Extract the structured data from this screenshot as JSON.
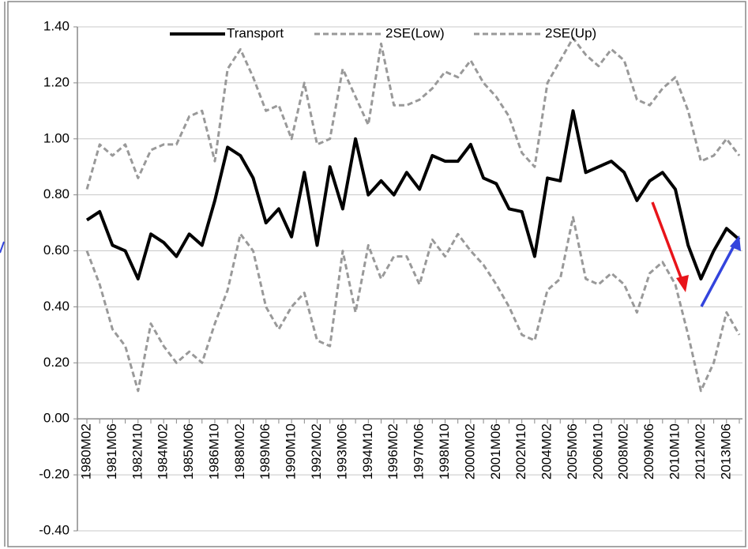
{
  "chart_data": {
    "type": "line",
    "categories": [
      "1980M02",
      null,
      "1981M06",
      null,
      "1982M10",
      null,
      "1984M02",
      null,
      "1985M06",
      null,
      "1986M10",
      null,
      "1988M02",
      null,
      "1989M06",
      null,
      "1990M10",
      null,
      "1992M02",
      null,
      "1993M06",
      null,
      "1994M10",
      null,
      "1996M02",
      null,
      "1997M06",
      null,
      "1998M10",
      null,
      "2000M02",
      null,
      "2001M06",
      null,
      "2002M10",
      null,
      "2004M02",
      null,
      "2005M06",
      null,
      "2006M10",
      null,
      "2008M02",
      null,
      "2009M06",
      null,
      "2010M10",
      null,
      "2012M02",
      null,
      "2013M06",
      null
    ],
    "series": [
      {
        "name": "Transport",
        "color": "#000000",
        "dashed": false,
        "values": [
          0.71,
          0.74,
          0.62,
          0.6,
          0.5,
          0.66,
          0.63,
          0.58,
          0.66,
          0.62,
          0.78,
          0.97,
          0.94,
          0.86,
          0.7,
          0.75,
          0.65,
          0.88,
          0.62,
          0.9,
          0.75,
          1.0,
          0.8,
          0.85,
          0.8,
          0.88,
          0.82,
          0.94,
          0.92,
          0.92,
          0.98,
          0.86,
          0.84,
          0.75,
          0.74,
          0.58,
          0.86,
          0.85,
          1.1,
          0.88,
          0.9,
          0.92,
          0.88,
          0.78,
          0.85,
          0.88,
          0.82,
          0.62,
          0.5,
          0.6,
          0.68,
          0.64
        ]
      },
      {
        "name": "2SE(Low)",
        "color": "#999999",
        "dashed": true,
        "values": [
          0.6,
          0.48,
          0.32,
          0.26,
          0.1,
          0.34,
          0.26,
          0.2,
          0.24,
          0.2,
          0.34,
          0.46,
          0.66,
          0.6,
          0.4,
          0.32,
          0.4,
          0.45,
          0.28,
          0.26,
          0.6,
          0.38,
          0.62,
          0.5,
          0.58,
          0.58,
          0.48,
          0.64,
          0.58,
          0.66,
          0.6,
          0.55,
          0.48,
          0.4,
          0.3,
          0.28,
          0.46,
          0.5,
          0.72,
          0.5,
          0.48,
          0.52,
          0.48,
          0.38,
          0.52,
          0.56,
          0.48,
          0.3,
          0.1,
          0.2,
          0.38,
          0.3
        ]
      },
      {
        "name": "2SE(Up)",
        "color": "#999999",
        "dashed": true,
        "values": [
          0.82,
          0.98,
          0.94,
          0.98,
          0.86,
          0.96,
          0.98,
          0.98,
          1.08,
          1.1,
          0.92,
          1.25,
          1.32,
          1.22,
          1.1,
          1.12,
          1.0,
          1.2,
          0.98,
          1.0,
          1.25,
          1.15,
          1.05,
          1.34,
          1.12,
          1.12,
          1.14,
          1.18,
          1.24,
          1.22,
          1.28,
          1.2,
          1.15,
          1.08,
          0.95,
          0.9,
          1.2,
          1.28,
          1.36,
          1.3,
          1.26,
          1.32,
          1.28,
          1.14,
          1.12,
          1.18,
          1.22,
          1.1,
          0.92,
          0.94,
          1.0,
          0.94
        ]
      }
    ],
    "ylim": [
      -0.4,
      1.4
    ],
    "yticks": [
      {
        "value": -0.4,
        "label": "-0.40"
      },
      {
        "value": -0.2,
        "label": "-0.20"
      },
      {
        "value": 0,
        "label": "0.00"
      },
      {
        "value": 0.2,
        "label": "0.20"
      },
      {
        "value": 0.4,
        "label": "0.40"
      },
      {
        "value": 0.6,
        "label": "0.60"
      },
      {
        "value": 0.8,
        "label": "0.80"
      },
      {
        "value": 1.0,
        "label": "1.00"
      },
      {
        "value": 1.2,
        "label": "1.20"
      },
      {
        "value": 1.4,
        "label": "1.40"
      }
    ],
    "grid": true,
    "legend": "top"
  }
}
